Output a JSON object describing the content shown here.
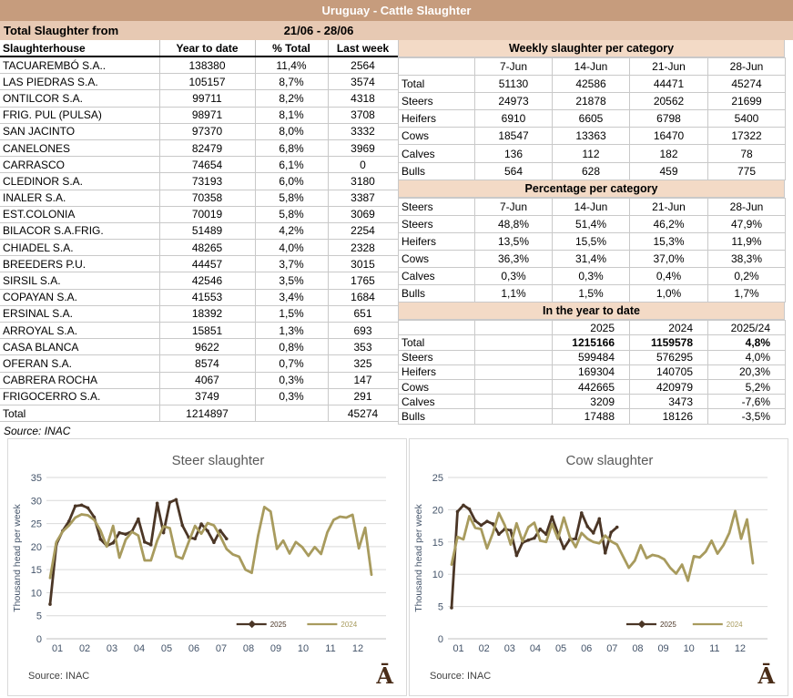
{
  "title_bar": {
    "title": "Uruguay - Cattle Slaughter"
  },
  "subheader": {
    "label": "Total Slaughter from",
    "period": "21/06 - 28/06"
  },
  "slaughterhouse_table": {
    "headers": [
      "Slaughterhouse",
      "Year to date",
      "% Total",
      "Last week"
    ],
    "rows": [
      [
        "TACUAREMBÓ S.A..",
        "138380",
        "11,4%",
        "2564"
      ],
      [
        "LAS PIEDRAS S.A.",
        "105157",
        "8,7%",
        "3574"
      ],
      [
        "ONTILCOR S.A.",
        "99711",
        "8,2%",
        "4318"
      ],
      [
        "FRIG. PUL (PULSA)",
        "98971",
        "8,1%",
        "3708"
      ],
      [
        "SAN JACINTO",
        "97370",
        "8,0%",
        "3332"
      ],
      [
        "CANELONES",
        "82479",
        "6,8%",
        "3969"
      ],
      [
        "CARRASCO",
        "74654",
        "6,1%",
        "0"
      ],
      [
        "CLEDINOR S.A.",
        "73193",
        "6,0%",
        "3180"
      ],
      [
        "INALER S.A.",
        "70358",
        "5,8%",
        "3387"
      ],
      [
        "EST.COLONIA",
        "70019",
        "5,8%",
        "3069"
      ],
      [
        "BILACOR S.A.FRIG.",
        "51489",
        "4,2%",
        "2254"
      ],
      [
        "CHIADEL S.A.",
        "48265",
        "4,0%",
        "2328"
      ],
      [
        "BREEDERS P.U.",
        "44457",
        "3,7%",
        "3015"
      ],
      [
        "SIRSIL S.A.",
        "42546",
        "3,5%",
        "1765"
      ],
      [
        "COPAYAN S.A.",
        "41553",
        "3,4%",
        "1684"
      ],
      [
        "ERSINAL S.A.",
        "18392",
        "1,5%",
        "651"
      ],
      [
        "ARROYAL S.A.",
        "15851",
        "1,3%",
        "693"
      ],
      [
        "CASA BLANCA",
        "9622",
        "0,8%",
        "353"
      ],
      [
        "OFERAN S.A.",
        "8574",
        "0,7%",
        "325"
      ],
      [
        "CABRERA ROCHA",
        "4067",
        "0,3%",
        "147"
      ],
      [
        "FRIGOCERRO S.A.",
        "3749",
        "0,3%",
        "291"
      ],
      [
        "Total",
        "1214897",
        "",
        "45274"
      ]
    ],
    "source": "Source: INAC"
  },
  "weekly_table": {
    "title": "Weekly slaughter per category",
    "rows": [
      [
        "",
        "7-Jun",
        "14-Jun",
        "21-Jun",
        "28-Jun"
      ],
      [
        "Total",
        "51130",
        "42586",
        "44471",
        "45274"
      ],
      [
        "Steers",
        "24973",
        "21878",
        "20562",
        "21699"
      ],
      [
        "Heifers",
        "6910",
        "6605",
        "6798",
        "5400"
      ],
      [
        "Cows",
        "18547",
        "13363",
        "16470",
        "17322"
      ],
      [
        "Calves",
        "136",
        "112",
        "182",
        "78"
      ],
      [
        "Bulls",
        "564",
        "628",
        "459",
        "775"
      ]
    ]
  },
  "percentage_table": {
    "title": "Percentage per category",
    "rows": [
      [
        "Steers",
        "7-Jun",
        "14-Jun",
        "21-Jun",
        "28-Jun"
      ],
      [
        "Steers",
        "48,8%",
        "51,4%",
        "46,2%",
        "47,9%"
      ],
      [
        "Heifers",
        "13,5%",
        "15,5%",
        "15,3%",
        "11,9%"
      ],
      [
        "Cows",
        "36,3%",
        "31,4%",
        "37,0%",
        "38,3%"
      ],
      [
        "Calves",
        "0,3%",
        "0,3%",
        "0,4%",
        "0,2%"
      ],
      [
        "Bulls",
        "1,1%",
        "1,5%",
        "1,0%",
        "1,7%"
      ]
    ]
  },
  "ytd_table": {
    "title": "In the year to date",
    "rows": [
      [
        "",
        "",
        "2025",
        "2024",
        "2025/24"
      ],
      [
        "Total",
        "",
        "1215166",
        "1159578",
        "4,8%"
      ],
      [
        "Steers",
        "",
        "599484",
        "576295",
        "4,0%"
      ],
      [
        "Heifers",
        "",
        "169304",
        "140705",
        "20,3%"
      ],
      [
        "Cows",
        "",
        "442665",
        "420979",
        "5,2%"
      ],
      [
        "Calves",
        "",
        "3209",
        "3473",
        "-7,6%"
      ],
      [
        "Bulls",
        "",
        "17488",
        "18126",
        "-3,5%"
      ]
    ]
  },
  "chart_data": [
    {
      "type": "line",
      "title": "Steer slaughter",
      "ylabel": "Thousand head per week",
      "xlabel": "",
      "x_unit": "week of year (52 weeks, axis labeled by month)",
      "categories": [
        "01",
        "02",
        "03",
        "04",
        "05",
        "06",
        "07",
        "08",
        "09",
        "10",
        "11",
        "12"
      ],
      "ylim": [
        0,
        35
      ],
      "ytick": 5,
      "grid": "horizontal",
      "legend_position": "inside lower right",
      "source": "Source: INAC",
      "logo": "Ā",
      "series": [
        {
          "name": "2025",
          "color": "#4B3626",
          "marker": true,
          "values": [
            7.5,
            20.5,
            23.4,
            25.5,
            28.8,
            29.0,
            28.4,
            26.4,
            21.6,
            20.2,
            20.8,
            23.0,
            22.7,
            23.3,
            26.0,
            21.0,
            20.4,
            29.4,
            23.0,
            29.6,
            30.2,
            24.6,
            22.0,
            21.7,
            24.9,
            23.4,
            20.9,
            23.5,
            21.7
          ]
        },
        {
          "name": "2024",
          "color": "#A89B5E",
          "marker": false,
          "values": [
            13.2,
            21.0,
            23.3,
            24.6,
            26.3,
            27.0,
            26.8,
            25.8,
            23.5,
            20.0,
            24.5,
            17.6,
            21.5,
            23.2,
            22.4,
            17.0,
            17.0,
            21.3,
            24.4,
            24.0,
            17.9,
            17.4,
            21.0,
            24.5,
            22.8,
            25.1,
            24.6,
            22.3,
            19.5,
            18.3,
            17.8,
            15.0,
            14.3,
            22.3,
            28.6,
            27.6,
            19.5,
            21.3,
            18.5,
            21.0,
            19.9,
            18.0,
            19.9,
            18.4,
            23.1,
            25.8,
            26.5,
            26.3,
            26.9,
            19.6,
            24.1,
            13.9
          ]
        }
      ]
    },
    {
      "type": "line",
      "title": "Cow slaughter",
      "ylabel": "Thousand head per week",
      "xlabel": "",
      "x_unit": "week of year (52 weeks, axis labeled by month)",
      "categories": [
        "01",
        "02",
        "03",
        "04",
        "05",
        "06",
        "07",
        "08",
        "09",
        "10",
        "11",
        "12"
      ],
      "ylim": [
        0,
        25
      ],
      "ytick": 5,
      "grid": "horizontal",
      "legend_position": "inside lower right",
      "source": "Source: INAC",
      "logo": "Ā",
      "series": [
        {
          "name": "2025",
          "color": "#4B3626",
          "marker": true,
          "values": [
            4.8,
            19.7,
            20.7,
            20.1,
            18.3,
            17.6,
            18.2,
            17.8,
            16.2,
            17.0,
            16.8,
            12.9,
            14.9,
            15.3,
            15.6,
            17.0,
            16.2,
            18.9,
            16.3,
            14.0,
            15.4,
            15.5,
            19.5,
            17.4,
            16.4,
            18.6,
            13.3,
            16.5,
            17.3
          ]
        },
        {
          "name": "2024",
          "color": "#A89B5E",
          "marker": false,
          "values": [
            11.5,
            15.8,
            15.4,
            19.0,
            17.2,
            17.0,
            14.0,
            16.4,
            19.5,
            17.6,
            14.6,
            17.9,
            15.1,
            17.3,
            18.0,
            15.2,
            15.0,
            17.8,
            15.5,
            18.8,
            15.8,
            14.2,
            16.4,
            15.5,
            15.0,
            14.8,
            16.0,
            15.1,
            14.6,
            12.8,
            11.0,
            12.1,
            14.5,
            12.5,
            13.0,
            12.8,
            12.3,
            11.0,
            10.1,
            11.5,
            9.0,
            12.8,
            12.6,
            13.5,
            15.2,
            13.2,
            14.5,
            16.4,
            19.8,
            15.5,
            18.5,
            11.7
          ]
        }
      ]
    }
  ],
  "colors": {
    "title_bar_bg": "#C69C7D",
    "period_row_bg": "#E7C9B3",
    "section_header_bg": "#F3DAC6",
    "series_2025": "#4B3626",
    "series_2024": "#A89B5E",
    "logo_brown": "#4A2D18"
  }
}
